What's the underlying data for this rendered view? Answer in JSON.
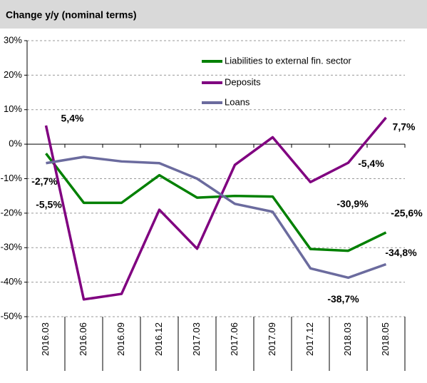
{
  "chart_data": {
    "type": "line",
    "title": "Change y/y (nominal terms)",
    "categories": [
      "2016.03",
      "2016.06",
      "2016.09",
      "2016.12",
      "2017.03",
      "2017.06",
      "2017.09",
      "2017.12",
      "2018.03",
      "2018.05"
    ],
    "series": [
      {
        "name": "Liabilities to external fin. sector",
        "color": "#008000",
        "values": [
          -2.7,
          -17,
          -17,
          -9,
          -15.5,
          -15,
          -15.2,
          -30.4,
          -30.9,
          -25.6
        ],
        "value_labels": [
          "-2,7%",
          null,
          null,
          null,
          null,
          null,
          null,
          null,
          "-30,9%",
          "-25,6%"
        ]
      },
      {
        "name": "Deposits",
        "color": "#800080",
        "values": [
          5.4,
          -45,
          -43.4,
          -19,
          -30.3,
          -6,
          2,
          -11,
          -5.4,
          7.7
        ],
        "value_labels": [
          "5,4%",
          null,
          null,
          null,
          null,
          null,
          null,
          null,
          "-5,4%",
          "7,7%"
        ]
      },
      {
        "name": "Loans",
        "color": "#6b6b9e",
        "values": [
          -5.5,
          -3.7,
          -5,
          -5.5,
          -10,
          -17.3,
          -19.6,
          -36,
          -38.7,
          -34.8
        ],
        "value_labels": [
          "-5,5%",
          null,
          null,
          null,
          null,
          null,
          null,
          null,
          "-38,7%",
          "-34,8%"
        ]
      }
    ],
    "ylim": [
      -50,
      30
    ],
    "yticks": [
      {
        "value": -50,
        "label": "-50%"
      },
      {
        "value": -40,
        "label": "-40%"
      },
      {
        "value": -30,
        "label": "-30%"
      },
      {
        "value": -20,
        "label": "-20%"
      },
      {
        "value": -10,
        "label": "-10%"
      },
      {
        "value": 0,
        "label": "0%"
      },
      {
        "value": 10,
        "label": "10%"
      },
      {
        "value": 20,
        "label": "20%"
      },
      {
        "value": 30,
        "label": "30%"
      }
    ],
    "grid": true
  }
}
